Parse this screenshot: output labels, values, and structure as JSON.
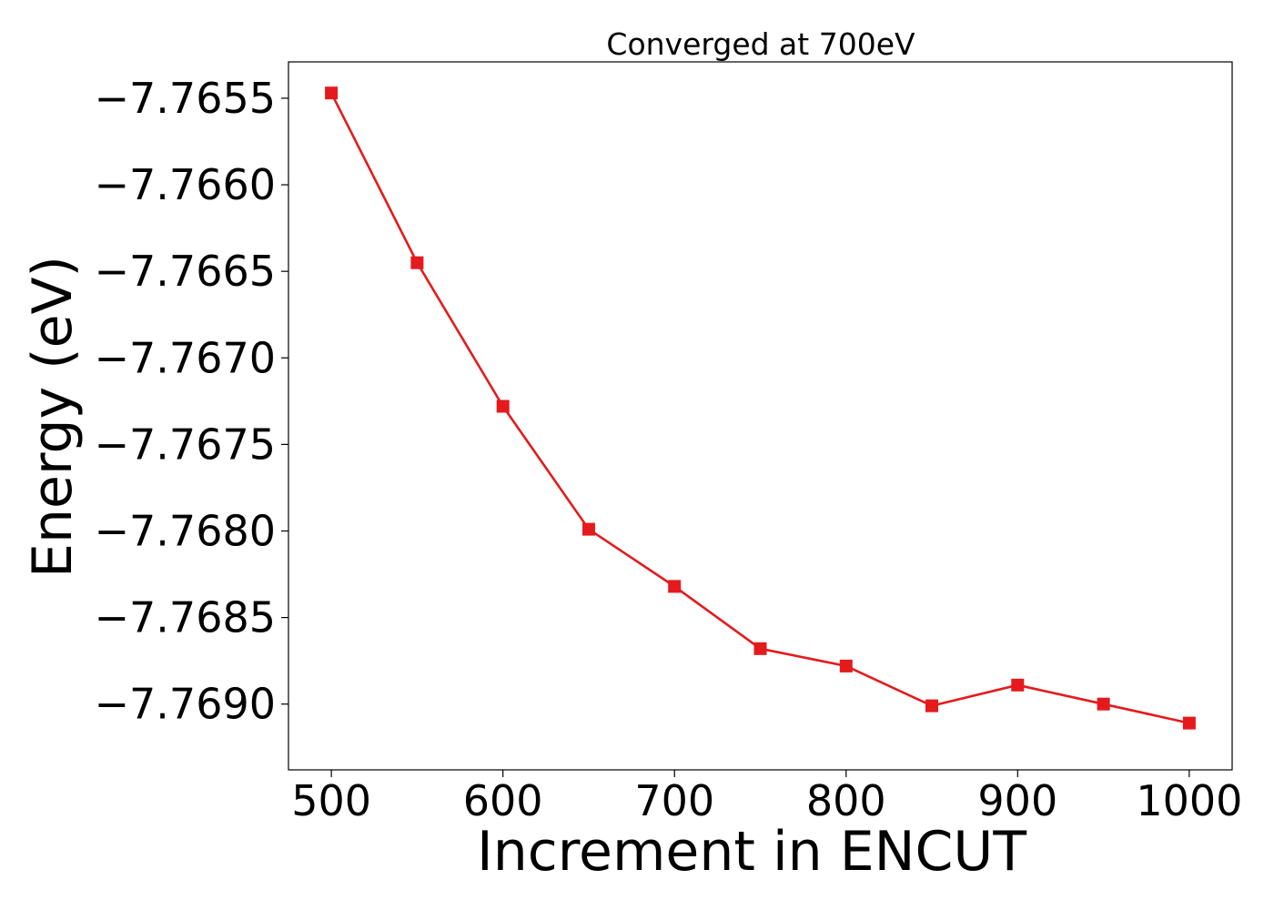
{
  "chart_data": {
    "type": "line",
    "title": "Converged at 700eV",
    "xlabel": "Increment in ENCUT",
    "ylabel": "Energy (eV)",
    "x": [
      500,
      550,
      600,
      650,
      700,
      750,
      800,
      850,
      900,
      950,
      1000
    ],
    "series": [
      {
        "values": [
          -7.76547,
          -7.76645,
          -7.76728,
          -7.76799,
          -7.76832,
          -7.76868,
          -7.76878,
          -7.76901,
          -7.76889,
          -7.769,
          -7.76911
        ],
        "color": "#e41a1c",
        "marker": "square"
      }
    ],
    "xticks": [
      500,
      600,
      700,
      800,
      900,
      1000
    ],
    "xtick_labels": [
      "500",
      "600",
      "700",
      "800",
      "900",
      "1000"
    ],
    "yticks": [
      -7.7655,
      -7.766,
      -7.7665,
      -7.767,
      -7.7675,
      -7.768,
      -7.7685,
      -7.769
    ],
    "ytick_labels": [
      "−7.7655",
      "−7.7660",
      "−7.7665",
      "−7.7670",
      "−7.7675",
      "−7.7680",
      "−7.7685",
      "−7.7690"
    ],
    "xlim": [
      475,
      1025
    ],
    "ylim": [
      -7.76938,
      -7.76529
    ],
    "grid": false,
    "legend": "none"
  }
}
